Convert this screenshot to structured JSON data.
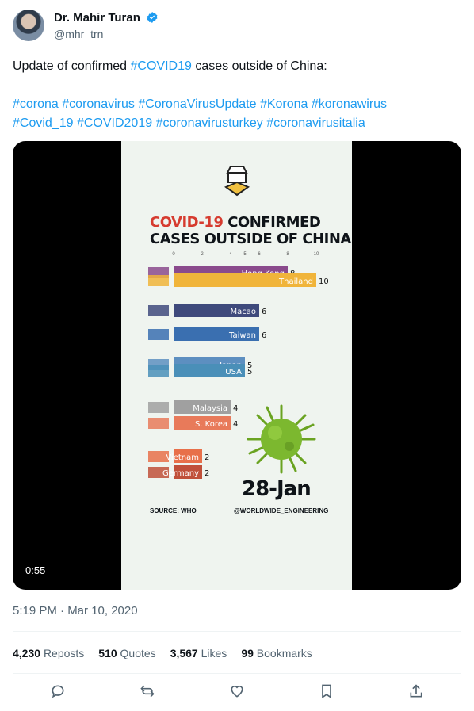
{
  "author": {
    "name": "Dr. Mahir Turan",
    "handle": "@mhr_trn"
  },
  "tweet": {
    "line1_prefix": "Update of confirmed ",
    "line1_tag": "#COVID19",
    "line1_suffix": " cases outside of China:",
    "hashtags_line1": [
      "#corona",
      "#coronavirus",
      "#CoronaVirusUpdate",
      "#Korona",
      "#koronawirus"
    ],
    "hashtags_line2": [
      "#Covid_19",
      "#COVID2019",
      "#coronavirusturkey",
      "#coronavirusitalia"
    ]
  },
  "video": {
    "duration": "0:55",
    "chart_title_red": "COVID-19",
    "chart_title_black1": " CONFIRMED",
    "chart_title_black2": "CASES OUTSIDE OF CHINA",
    "date": "28-Jan",
    "source": "SOURCE: WHO",
    "credit": "@WORLDWIDE_ENGINEERING"
  },
  "chart_data": {
    "type": "bar",
    "title": "COVID-19 CONFIRMED CASES OUTSIDE OF CHINA",
    "xlim": [
      0,
      10
    ],
    "x_ticks": [
      "0",
      "2",
      "4",
      "5",
      "6",
      "8",
      "10"
    ],
    "categories": [
      "Hong Kong",
      "Thailand",
      "Macao",
      "Taiwan",
      "Japan",
      "USA",
      "Malaysia",
      "S. Korea",
      "Vietnam",
      "Germany"
    ],
    "values": [
      8,
      10,
      6,
      6,
      5,
      5,
      4,
      4,
      2,
      2
    ],
    "colors": [
      "#8a4a8c",
      "#f0b43a",
      "#3f4a7c",
      "#3a6fb0",
      "#5d8fc0",
      "#4a8fb8",
      "#a0a0a0",
      "#e87a5a",
      "#e8704a",
      "#c0503a"
    ],
    "date": "28-Jan"
  },
  "timestamp": "5:19 PM · Mar 10, 2020",
  "stats": {
    "reposts_count": "4,230",
    "reposts_label": "Reposts",
    "quotes_count": "510",
    "quotes_label": "Quotes",
    "likes_count": "3,567",
    "likes_label": "Likes",
    "bookmarks_count": "99",
    "bookmarks_label": "Bookmarks"
  },
  "icons": [
    "reply-icon",
    "repost-icon",
    "like-icon",
    "bookmark-icon",
    "share-icon"
  ]
}
